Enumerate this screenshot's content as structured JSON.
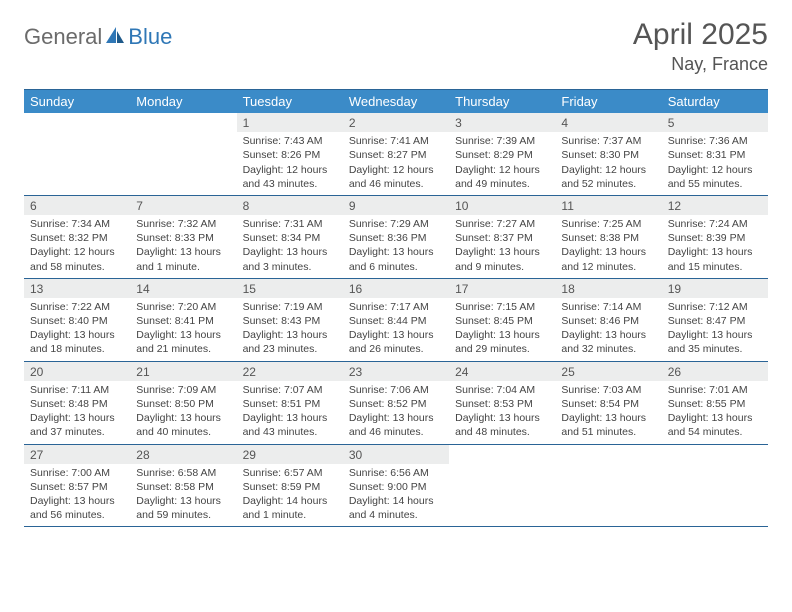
{
  "logo": {
    "part1": "General",
    "part2": "Blue"
  },
  "title": "April 2025",
  "location": "Nay, France",
  "colors": {
    "header_bar": "#3b8bc8",
    "border": "#2a6496",
    "daynum_bg": "#eceded",
    "logo_gray": "#6b6b6b",
    "logo_blue": "#2f77b6",
    "text": "#444444"
  },
  "day_headers": [
    "Sunday",
    "Monday",
    "Tuesday",
    "Wednesday",
    "Thursday",
    "Friday",
    "Saturday"
  ],
  "weeks": [
    [
      {
        "empty": true
      },
      {
        "empty": true
      },
      {
        "num": "1",
        "sunrise": "Sunrise: 7:43 AM",
        "sunset": "Sunset: 8:26 PM",
        "daylight": "Daylight: 12 hours and 43 minutes."
      },
      {
        "num": "2",
        "sunrise": "Sunrise: 7:41 AM",
        "sunset": "Sunset: 8:27 PM",
        "daylight": "Daylight: 12 hours and 46 minutes."
      },
      {
        "num": "3",
        "sunrise": "Sunrise: 7:39 AM",
        "sunset": "Sunset: 8:29 PM",
        "daylight": "Daylight: 12 hours and 49 minutes."
      },
      {
        "num": "4",
        "sunrise": "Sunrise: 7:37 AM",
        "sunset": "Sunset: 8:30 PM",
        "daylight": "Daylight: 12 hours and 52 minutes."
      },
      {
        "num": "5",
        "sunrise": "Sunrise: 7:36 AM",
        "sunset": "Sunset: 8:31 PM",
        "daylight": "Daylight: 12 hours and 55 minutes."
      }
    ],
    [
      {
        "num": "6",
        "sunrise": "Sunrise: 7:34 AM",
        "sunset": "Sunset: 8:32 PM",
        "daylight": "Daylight: 12 hours and 58 minutes."
      },
      {
        "num": "7",
        "sunrise": "Sunrise: 7:32 AM",
        "sunset": "Sunset: 8:33 PM",
        "daylight": "Daylight: 13 hours and 1 minute."
      },
      {
        "num": "8",
        "sunrise": "Sunrise: 7:31 AM",
        "sunset": "Sunset: 8:34 PM",
        "daylight": "Daylight: 13 hours and 3 minutes."
      },
      {
        "num": "9",
        "sunrise": "Sunrise: 7:29 AM",
        "sunset": "Sunset: 8:36 PM",
        "daylight": "Daylight: 13 hours and 6 minutes."
      },
      {
        "num": "10",
        "sunrise": "Sunrise: 7:27 AM",
        "sunset": "Sunset: 8:37 PM",
        "daylight": "Daylight: 13 hours and 9 minutes."
      },
      {
        "num": "11",
        "sunrise": "Sunrise: 7:25 AM",
        "sunset": "Sunset: 8:38 PM",
        "daylight": "Daylight: 13 hours and 12 minutes."
      },
      {
        "num": "12",
        "sunrise": "Sunrise: 7:24 AM",
        "sunset": "Sunset: 8:39 PM",
        "daylight": "Daylight: 13 hours and 15 minutes."
      }
    ],
    [
      {
        "num": "13",
        "sunrise": "Sunrise: 7:22 AM",
        "sunset": "Sunset: 8:40 PM",
        "daylight": "Daylight: 13 hours and 18 minutes."
      },
      {
        "num": "14",
        "sunrise": "Sunrise: 7:20 AM",
        "sunset": "Sunset: 8:41 PM",
        "daylight": "Daylight: 13 hours and 21 minutes."
      },
      {
        "num": "15",
        "sunrise": "Sunrise: 7:19 AM",
        "sunset": "Sunset: 8:43 PM",
        "daylight": "Daylight: 13 hours and 23 minutes."
      },
      {
        "num": "16",
        "sunrise": "Sunrise: 7:17 AM",
        "sunset": "Sunset: 8:44 PM",
        "daylight": "Daylight: 13 hours and 26 minutes."
      },
      {
        "num": "17",
        "sunrise": "Sunrise: 7:15 AM",
        "sunset": "Sunset: 8:45 PM",
        "daylight": "Daylight: 13 hours and 29 minutes."
      },
      {
        "num": "18",
        "sunrise": "Sunrise: 7:14 AM",
        "sunset": "Sunset: 8:46 PM",
        "daylight": "Daylight: 13 hours and 32 minutes."
      },
      {
        "num": "19",
        "sunrise": "Sunrise: 7:12 AM",
        "sunset": "Sunset: 8:47 PM",
        "daylight": "Daylight: 13 hours and 35 minutes."
      }
    ],
    [
      {
        "num": "20",
        "sunrise": "Sunrise: 7:11 AM",
        "sunset": "Sunset: 8:48 PM",
        "daylight": "Daylight: 13 hours and 37 minutes."
      },
      {
        "num": "21",
        "sunrise": "Sunrise: 7:09 AM",
        "sunset": "Sunset: 8:50 PM",
        "daylight": "Daylight: 13 hours and 40 minutes."
      },
      {
        "num": "22",
        "sunrise": "Sunrise: 7:07 AM",
        "sunset": "Sunset: 8:51 PM",
        "daylight": "Daylight: 13 hours and 43 minutes."
      },
      {
        "num": "23",
        "sunrise": "Sunrise: 7:06 AM",
        "sunset": "Sunset: 8:52 PM",
        "daylight": "Daylight: 13 hours and 46 minutes."
      },
      {
        "num": "24",
        "sunrise": "Sunrise: 7:04 AM",
        "sunset": "Sunset: 8:53 PM",
        "daylight": "Daylight: 13 hours and 48 minutes."
      },
      {
        "num": "25",
        "sunrise": "Sunrise: 7:03 AM",
        "sunset": "Sunset: 8:54 PM",
        "daylight": "Daylight: 13 hours and 51 minutes."
      },
      {
        "num": "26",
        "sunrise": "Sunrise: 7:01 AM",
        "sunset": "Sunset: 8:55 PM",
        "daylight": "Daylight: 13 hours and 54 minutes."
      }
    ],
    [
      {
        "num": "27",
        "sunrise": "Sunrise: 7:00 AM",
        "sunset": "Sunset: 8:57 PM",
        "daylight": "Daylight: 13 hours and 56 minutes."
      },
      {
        "num": "28",
        "sunrise": "Sunrise: 6:58 AM",
        "sunset": "Sunset: 8:58 PM",
        "daylight": "Daylight: 13 hours and 59 minutes."
      },
      {
        "num": "29",
        "sunrise": "Sunrise: 6:57 AM",
        "sunset": "Sunset: 8:59 PM",
        "daylight": "Daylight: 14 hours and 1 minute."
      },
      {
        "num": "30",
        "sunrise": "Sunrise: 6:56 AM",
        "sunset": "Sunset: 9:00 PM",
        "daylight": "Daylight: 14 hours and 4 minutes."
      },
      {
        "empty": true
      },
      {
        "empty": true
      },
      {
        "empty": true
      }
    ]
  ]
}
